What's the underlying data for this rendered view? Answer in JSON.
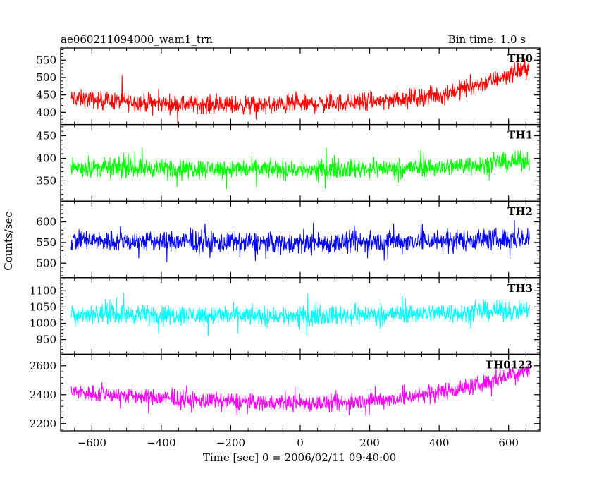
{
  "header": {
    "title": "ae060211094000_wam1_trn",
    "bin_time": "Bin time: 1.0 s"
  },
  "chart_data": {
    "type": "line",
    "xlabel": "Time [sec] 0 = 2006/02/11 09:40:00",
    "ylabel": "Counts/sec",
    "xlim": [
      -690,
      690
    ],
    "x_ticks": [
      -600,
      -400,
      -200,
      0,
      200,
      400,
      600
    ],
    "x_tick_labels": [
      "−600",
      "−400",
      "−200",
      "0",
      "200",
      "400",
      "600"
    ],
    "x_range": [
      -660,
      660
    ],
    "panels": [
      {
        "name": "TH0",
        "color": "#ff0000",
        "ylim": [
          365,
          585
        ],
        "yticks": [
          400,
          450,
          500,
          550
        ],
        "baseline": [
          [
            -660,
            440
          ],
          [
            -400,
            425
          ],
          [
            -100,
            420
          ],
          [
            200,
            430
          ],
          [
            400,
            450
          ],
          [
            550,
            490
          ],
          [
            660,
            530
          ]
        ],
        "noise": 40
      },
      {
        "name": "TH1",
        "color": "#00ff00",
        "ylim": [
          305,
          475
        ],
        "yticks": [
          350,
          400,
          450
        ],
        "baseline": [
          [
            -660,
            380
          ],
          [
            0,
            375
          ],
          [
            400,
            380
          ],
          [
            660,
            395
          ]
        ],
        "noise": 32
      },
      {
        "name": "TH2",
        "color": "#0000ff",
        "ylim": [
          465,
          650
        ],
        "yticks": [
          500,
          550,
          600
        ],
        "baseline": [
          [
            -660,
            555
          ],
          [
            0,
            548
          ],
          [
            660,
            560
          ]
        ],
        "noise": 40
      },
      {
        "name": "TH3",
        "color": "#00ffff",
        "ylim": [
          905,
          1140
        ],
        "yticks": [
          950,
          1000,
          1050,
          1100
        ],
        "baseline": [
          [
            -660,
            1030
          ],
          [
            0,
            1022
          ],
          [
            660,
            1040
          ]
        ],
        "noise": 45
      },
      {
        "name": "TH0123",
        "color": "#ff00ff",
        "ylim": [
          2150,
          2680
        ],
        "yticks": [
          2200,
          2400,
          2600
        ],
        "baseline": [
          [
            -660,
            2420
          ],
          [
            -300,
            2360
          ],
          [
            100,
            2340
          ],
          [
            300,
            2380
          ],
          [
            500,
            2460
          ],
          [
            660,
            2580
          ]
        ],
        "noise": 90
      }
    ]
  }
}
